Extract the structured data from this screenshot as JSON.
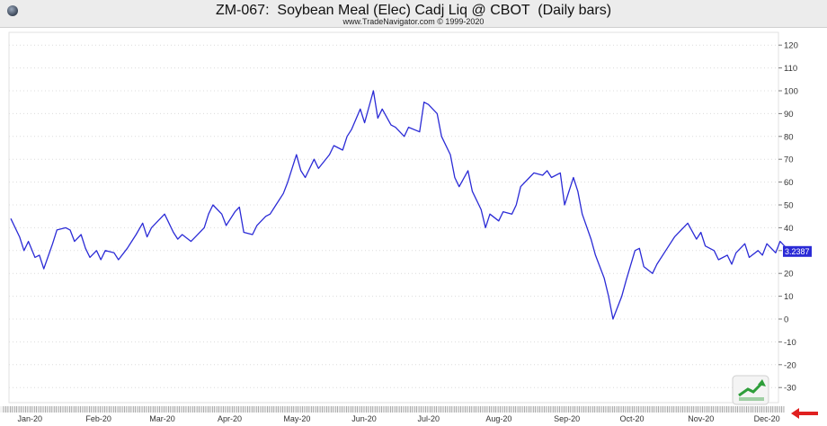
{
  "header": {
    "title": "ZM-067:  Soybean Meal (Elec) Cadj Liq @ CBOT  (Daily bars)",
    "subtitle": "www.TradeNavigator.com © 1999-2020"
  },
  "colors": {
    "line": "#2b2bd6",
    "grid": "#dcdcdc",
    "current_value_bg": "#2b2bd6",
    "arrow": "#e02020",
    "badge_green": "#2e9e3a"
  },
  "chart_data": {
    "type": "line",
    "title": "ZM-067:  Soybean Meal (Elec) Cadj Liq @ CBOT  (Daily bars)",
    "subtitle": "www.TradeNavigator.com © 1999-2020",
    "xlabel": "",
    "ylabel": "",
    "ylim": [
      -35,
      125
    ],
    "yticks": [
      "120",
      "110",
      "100",
      "90",
      "80",
      "70",
      "60",
      "50",
      "40",
      "30",
      "20",
      "10",
      "0",
      "-10",
      "-20",
      "-30"
    ],
    "x_month_labels": [
      "Jan-20",
      "Feb-20",
      "Mar-20",
      "Apr-20",
      "May-20",
      "Jun-20",
      "Jul-20",
      "Aug-20",
      "Sep-20",
      "Oct-20",
      "Nov-20",
      "Dec-20"
    ],
    "current_value_label": "3.2387",
    "grid": true,
    "x_day_start": "2020-01-02",
    "series": [
      {
        "points": [
          [
            "2020-01-02",
            44
          ],
          [
            "2020-01-06",
            36
          ],
          [
            "2020-01-08",
            30
          ],
          [
            "2020-01-10",
            34
          ],
          [
            "2020-01-13",
            27
          ],
          [
            "2020-01-15",
            28
          ],
          [
            "2020-01-17",
            22
          ],
          [
            "2020-01-21",
            33
          ],
          [
            "2020-01-23",
            39
          ],
          [
            "2020-01-27",
            40
          ],
          [
            "2020-01-29",
            39
          ],
          [
            "2020-01-31",
            34
          ],
          [
            "2020-02-03",
            37
          ],
          [
            "2020-02-05",
            31
          ],
          [
            "2020-02-07",
            27
          ],
          [
            "2020-02-10",
            30
          ],
          [
            "2020-02-12",
            26
          ],
          [
            "2020-02-14",
            30
          ],
          [
            "2020-02-18",
            29
          ],
          [
            "2020-02-20",
            26
          ],
          [
            "2020-02-24",
            31
          ],
          [
            "2020-02-26",
            34
          ],
          [
            "2020-02-28",
            37
          ],
          [
            "2020-03-02",
            42
          ],
          [
            "2020-03-04",
            36
          ],
          [
            "2020-03-06",
            40
          ],
          [
            "2020-03-10",
            44
          ],
          [
            "2020-03-12",
            46
          ],
          [
            "2020-03-16",
            38
          ],
          [
            "2020-03-18",
            35
          ],
          [
            "2020-03-20",
            37
          ],
          [
            "2020-03-24",
            34
          ],
          [
            "2020-03-26",
            36
          ],
          [
            "2020-03-30",
            40
          ],
          [
            "2020-04-01",
            46
          ],
          [
            "2020-04-03",
            50
          ],
          [
            "2020-04-07",
            46
          ],
          [
            "2020-04-09",
            41
          ],
          [
            "2020-04-13",
            47
          ],
          [
            "2020-04-15",
            49
          ],
          [
            "2020-04-17",
            38
          ],
          [
            "2020-04-21",
            37
          ],
          [
            "2020-04-23",
            41
          ],
          [
            "2020-04-27",
            45
          ],
          [
            "2020-04-29",
            46
          ],
          [
            "2020-05-01",
            49
          ],
          [
            "2020-05-05",
            55
          ],
          [
            "2020-05-07",
            60
          ],
          [
            "2020-05-11",
            72
          ],
          [
            "2020-05-13",
            65
          ],
          [
            "2020-05-15",
            62
          ],
          [
            "2020-05-19",
            70
          ],
          [
            "2020-05-21",
            66
          ],
          [
            "2020-05-26",
            72
          ],
          [
            "2020-05-28",
            76
          ],
          [
            "2020-06-01",
            74
          ],
          [
            "2020-06-03",
            80
          ],
          [
            "2020-06-05",
            83
          ],
          [
            "2020-06-09",
            92
          ],
          [
            "2020-06-11",
            86
          ],
          [
            "2020-06-15",
            100
          ],
          [
            "2020-06-17",
            88
          ],
          [
            "2020-06-19",
            92
          ],
          [
            "2020-06-23",
            85
          ],
          [
            "2020-06-25",
            84
          ],
          [
            "2020-06-29",
            80
          ],
          [
            "2020-07-01",
            84
          ],
          [
            "2020-07-06",
            82
          ],
          [
            "2020-07-08",
            95
          ],
          [
            "2020-07-10",
            94
          ],
          [
            "2020-07-14",
            90
          ],
          [
            "2020-07-16",
            80
          ],
          [
            "2020-07-20",
            72
          ],
          [
            "2020-07-22",
            62
          ],
          [
            "2020-07-24",
            58
          ],
          [
            "2020-07-28",
            65
          ],
          [
            "2020-07-30",
            56
          ],
          [
            "2020-08-03",
            48
          ],
          [
            "2020-08-05",
            40
          ],
          [
            "2020-08-07",
            46
          ],
          [
            "2020-08-11",
            43
          ],
          [
            "2020-08-13",
            47
          ],
          [
            "2020-08-17",
            46
          ],
          [
            "2020-08-19",
            50
          ],
          [
            "2020-08-21",
            58
          ],
          [
            "2020-08-25",
            62
          ],
          [
            "2020-08-27",
            64
          ],
          [
            "2020-08-31",
            63
          ],
          [
            "2020-09-02",
            65
          ],
          [
            "2020-09-04",
            62
          ],
          [
            "2020-09-08",
            64
          ],
          [
            "2020-09-10",
            50
          ],
          [
            "2020-09-14",
            62
          ],
          [
            "2020-09-16",
            56
          ],
          [
            "2020-09-18",
            46
          ],
          [
            "2020-09-22",
            35
          ],
          [
            "2020-09-24",
            28
          ],
          [
            "2020-09-28",
            18
          ],
          [
            "2020-09-30",
            10
          ],
          [
            "2020-10-02",
            0
          ],
          [
            "2020-10-06",
            10
          ],
          [
            "2020-10-08",
            17
          ],
          [
            "2020-10-12",
            30
          ],
          [
            "2020-10-14",
            31
          ],
          [
            "2020-10-16",
            23
          ],
          [
            "2020-10-20",
            20
          ],
          [
            "2020-10-22",
            24
          ],
          [
            "2020-10-26",
            30
          ],
          [
            "2020-10-28",
            33
          ],
          [
            "2020-10-30",
            36
          ],
          [
            "2020-11-03",
            40
          ],
          [
            "2020-11-05",
            42
          ],
          [
            "2020-11-09",
            35
          ],
          [
            "2020-11-11",
            38
          ],
          [
            "2020-11-13",
            32
          ],
          [
            "2020-11-17",
            30
          ],
          [
            "2020-11-19",
            26
          ],
          [
            "2020-11-23",
            28
          ],
          [
            "2020-11-25",
            24
          ],
          [
            "2020-11-27",
            29
          ],
          [
            "2020-12-01",
            33
          ],
          [
            "2020-12-03",
            27
          ],
          [
            "2020-12-07",
            30
          ],
          [
            "2020-12-09",
            28
          ],
          [
            "2020-12-11",
            33
          ],
          [
            "2020-12-15",
            29
          ],
          [
            "2020-12-17",
            34
          ],
          [
            "2020-12-21",
            30
          ]
        ]
      }
    ]
  }
}
